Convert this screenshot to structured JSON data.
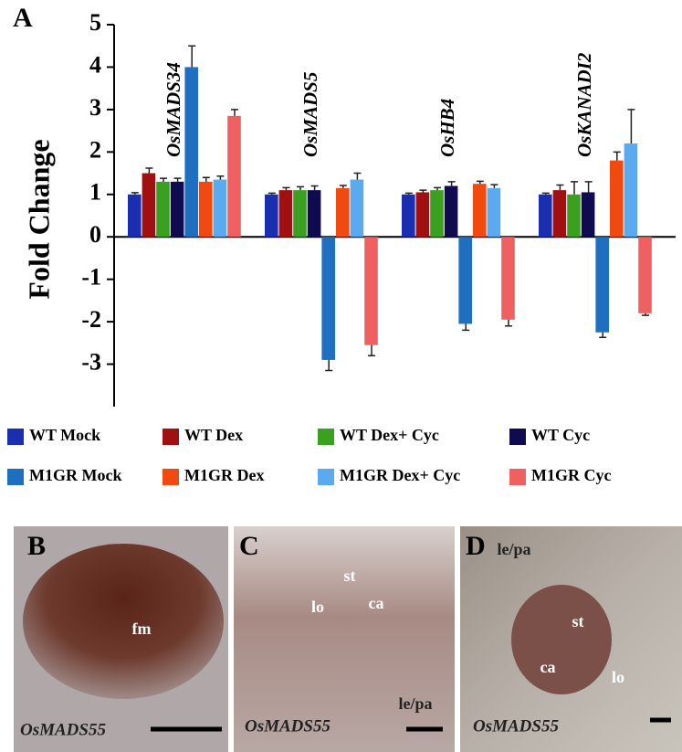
{
  "chart_data": {
    "type": "bar",
    "panel": "A",
    "ylabel": "Fold Change",
    "categories": [
      "OsMADS34",
      "OsMADS5",
      "OsHB4",
      "OsKANADI2"
    ],
    "series": [
      {
        "name": "WT Mock",
        "color": "#1a2fb0",
        "values": [
          1.0,
          1.0,
          1.0,
          1.0
        ],
        "errors": [
          0.04,
          0.03,
          0.03,
          0.03
        ]
      },
      {
        "name": "WT Dex",
        "color": "#a01010",
        "values": [
          1.5,
          1.1,
          1.05,
          1.1
        ],
        "errors": [
          0.12,
          0.06,
          0.05,
          0.12
        ]
      },
      {
        "name": "WT Dex+ Cyc",
        "color": "#3aa020",
        "values": [
          1.3,
          1.1,
          1.1,
          1.0
        ],
        "errors": [
          0.08,
          0.08,
          0.06,
          0.3
        ]
      },
      {
        "name": "WT Cyc",
        "color": "#100a50",
        "values": [
          1.3,
          1.1,
          1.2,
          1.05
        ],
        "errors": [
          0.08,
          0.1,
          0.1,
          0.25
        ]
      },
      {
        "name": "M1GR Mock",
        "color": "#1f6fc0",
        "values": [
          4.0,
          -2.9,
          -2.05,
          -2.25
        ],
        "errors": [
          0.5,
          0.25,
          0.15,
          0.12
        ]
      },
      {
        "name": "M1GR Dex",
        "color": "#f04a10",
        "values": [
          1.3,
          1.15,
          1.25,
          1.8
        ],
        "errors": [
          0.1,
          0.06,
          0.06,
          0.2
        ]
      },
      {
        "name": "M1GR Dex+ Cyc",
        "color": "#5aaaf0",
        "values": [
          1.35,
          1.35,
          1.15,
          2.2
        ],
        "errors": [
          0.08,
          0.15,
          0.08,
          0.8
        ]
      },
      {
        "name": "M1GR Cyc",
        "color": "#f06060",
        "values": [
          2.85,
          -2.55,
          -1.95,
          -1.8
        ],
        "errors": [
          0.15,
          0.25,
          0.15,
          0.05
        ]
      }
    ],
    "ylim": [
      -4,
      5
    ],
    "yticks": [
      -3,
      -2,
      -1,
      0,
      1,
      2,
      3,
      4,
      5
    ]
  },
  "panels": [
    {
      "label": "B",
      "annotations": [
        "fm"
      ],
      "gene": "OsMADS55"
    },
    {
      "label": "C",
      "annotations": [
        "st",
        "lo",
        "ca",
        "le/pa"
      ],
      "gene": "OsMADS55"
    },
    {
      "label": "D",
      "annotations": [
        "le/pa",
        "st",
        "ca",
        "lo"
      ],
      "gene": "OsMADS55"
    }
  ]
}
